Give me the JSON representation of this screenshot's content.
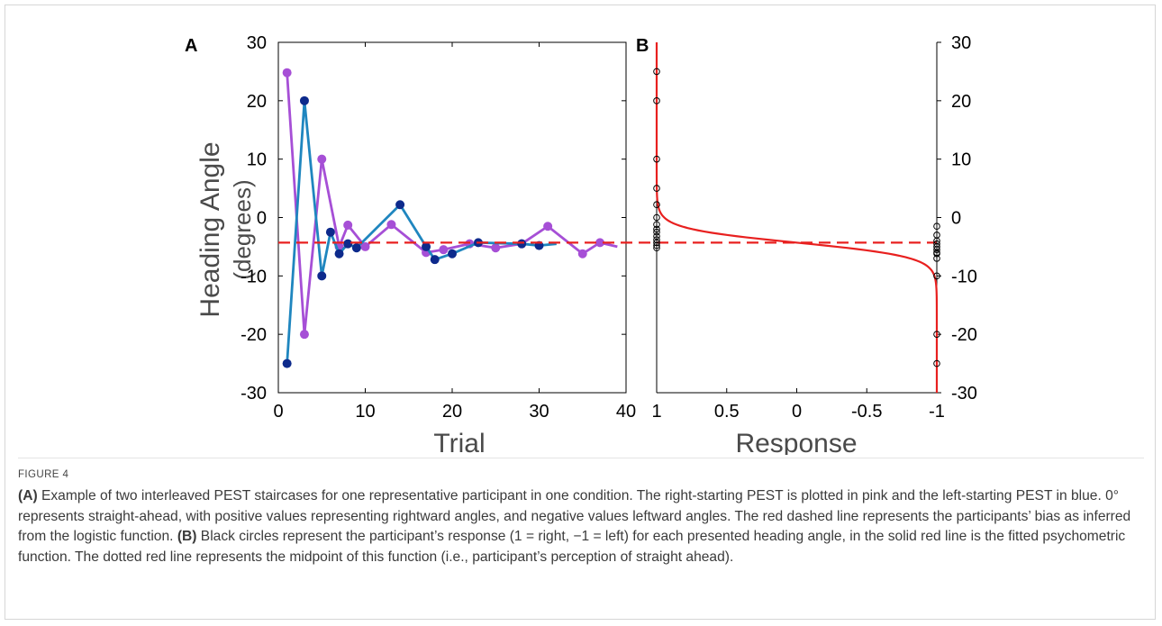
{
  "figure_label": "FIGURE 4",
  "caption": {
    "a_tag": "(A)",
    "a_text": " Example of two interleaved PEST staircases for one representative participant in one condition. The right-starting PEST is plotted in pink and the left-starting PEST in blue. 0° represents straight-ahead, with positive values representing rightward angles, and negative values leftward angles. The red dashed line represents the participants’ bias as inferred from the logistic function. ",
    "b_tag": "(B)",
    "b_text": " Black circles represent the participant’s response (1 = right, −1 = left) for each presented heading angle, in the solid red line is the fitted psychometric function. The dotted red line represents the midpoint of this function (i.e., participant’s perception of straight ahead)."
  },
  "colors": {
    "pink_series": "#a64fd6",
    "blue_line": "#1f86bf",
    "blue_marker": "#0d2a8c",
    "fit_line": "#e8201f",
    "axis": "#000000"
  },
  "chart_data": [
    {
      "panel_label": "A",
      "type": "line",
      "xlabel": "Trial",
      "ylabel_line1": "Heading Angle",
      "ylabel_line2": "(degrees)",
      "xlim": [
        0,
        40
      ],
      "ylim": [
        -30,
        30
      ],
      "xticks": [
        0,
        10,
        20,
        30,
        40
      ],
      "yticks": [
        -30,
        -20,
        -10,
        0,
        10,
        20,
        30
      ],
      "bias_line": -4.3,
      "series": [
        {
          "color_key": "pink_series",
          "x": [
            1,
            3,
            5,
            7,
            8,
            10,
            13,
            17,
            19,
            22,
            25,
            28,
            31,
            35,
            37,
            39
          ],
          "y": [
            24.8,
            -20,
            10,
            -5,
            -1.3,
            -5,
            -1.2,
            -6,
            -5.5,
            -4.5,
            -5.2,
            -4.5,
            -1.5,
            -6.2,
            -4.3,
            -5
          ],
          "markers": [
            0,
            1,
            2,
            3,
            4,
            5,
            6,
            7,
            8,
            9,
            10,
            11,
            12,
            13,
            14
          ]
        },
        {
          "color_key": "blue_line",
          "marker_color_key": "blue_marker",
          "x": [
            1,
            3,
            5,
            6,
            7,
            8,
            9,
            14,
            17,
            18,
            20,
            23,
            28,
            30,
            32
          ],
          "y": [
            -25,
            20,
            -10,
            -2.5,
            -6.2,
            -4.5,
            -5.2,
            2.2,
            -5,
            -7.2,
            -6.2,
            -4.3,
            -4.5,
            -4.8,
            -4.5
          ],
          "markers": [
            0,
            1,
            2,
            3,
            4,
            5,
            6,
            7,
            8,
            9,
            10,
            11,
            12,
            13
          ]
        }
      ]
    },
    {
      "panel_label": "B",
      "type": "line",
      "xlabel": "Response",
      "xlim": [
        1,
        -1
      ],
      "ylim": [
        -30,
        30
      ],
      "xticks": [
        1,
        0.5,
        0,
        -0.5,
        -1
      ],
      "xticklabels": [
        "1",
        "0.5",
        "0",
        "-0.5",
        "-1"
      ],
      "yticks": [
        -30,
        -20,
        -10,
        0,
        10,
        20,
        30
      ],
      "midpoint": -4.3,
      "logistic_scale": 1.2,
      "responses_right": [
        25,
        20,
        10,
        5,
        2.2,
        0,
        -1.2,
        -2,
        -2.5,
        -3.2,
        -3.8,
        -4.3,
        -4.8,
        -5.2
      ],
      "responses_left": [
        -1.5,
        -3,
        -4,
        -4.5,
        -5,
        -5.5,
        -6,
        -6.2,
        -7,
        -10,
        -20,
        -25
      ]
    }
  ]
}
